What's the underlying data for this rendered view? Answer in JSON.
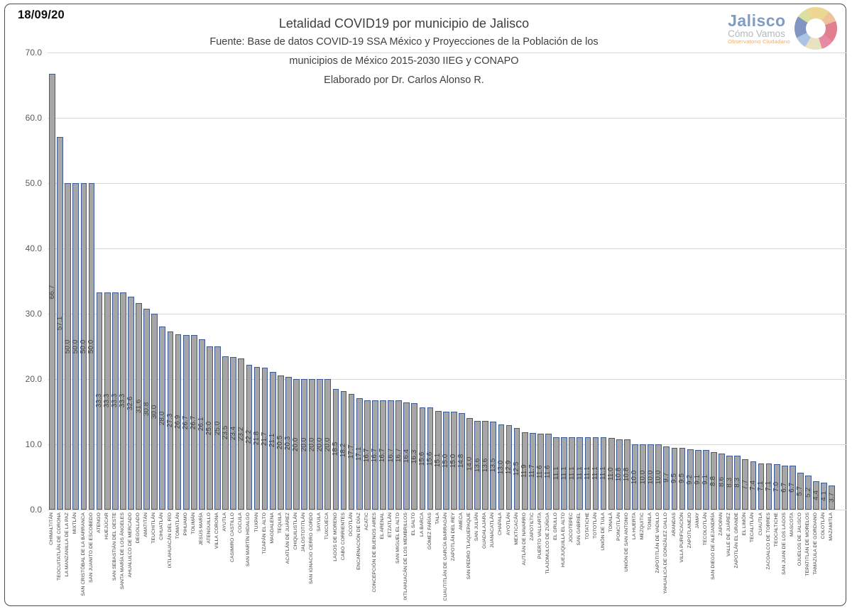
{
  "date_label": "18/09/20",
  "header": {
    "title": "Letalidad COVID19 por municipio de Jalisco",
    "subtitle1": "Fuente: Base de datos COVID-19 SSA México y Proyecciones de la Población de los",
    "subtitle2": "municipios de México 2015-2030 IIEG y CONAPO",
    "subtitle3": "Elaborado por Dr. Carlos Alonso R."
  },
  "logo": {
    "line1": "Jalisco",
    "line2": "Cómo Vamos",
    "line3": "Observatorio Ciudadano",
    "brand_blue": "#7f9dc4",
    "brand_gray": "#b3b9bf",
    "brand_orange": "#f0a868"
  },
  "chart_data": {
    "type": "bar",
    "title": "Letalidad COVID19 por municipio de Jalisco",
    "xlabel": "",
    "ylabel": "",
    "ylim": [
      0,
      70
    ],
    "yticks": [
      70,
      60,
      50,
      40,
      30,
      20,
      10,
      0
    ],
    "grid": true,
    "legend": "none",
    "bar_fill": "#a6a6a6",
    "bar_border": "#3c5a96",
    "gridline_color": "#d9d9d9",
    "label_color": "#404040",
    "categories": [
      "CHIMALTITÁN",
      "TEOCUITATLÁN DE CORONA",
      "LA MANZANILLA DE LA PAZ",
      "MIXTLÁN",
      "SAN CRISTÓBAL DE LA BARRANCA",
      "SAN JUANITO DE ESCOBEDO",
      "ATENGO",
      "HUEJÚCAR",
      "SAN SEBASTIÁN DEL OESTE",
      "SANTA MARÍA DE LOS ÁNGELES",
      "AHUALULCO DE MERCADO",
      "DEGOLLADO",
      "AMATITÁN",
      "TEUCHITLÁN",
      "CIHUATLÁN",
      "IXTLAHUACÁN DEL RÍO",
      "TOMATLÁN",
      "PIHUAMO",
      "TOLIMÁN",
      "JESÚS MARÍA",
      "ATENGUILLO",
      "VILLA CORONA",
      "AYUTLA",
      "CASIMIRO CASTILLO",
      "COCULA",
      "SAN MARTÍN HIDALGO",
      "TUXPAN",
      "TIZAPÁN EL ALTO",
      "MAGDALENA",
      "TEQUILA",
      "ACATLÁN DE JUÁREZ",
      "CHIQUILISTLÁN",
      "JALOSTOTITLÁN",
      "SAN IGNACIO CERRO GORDO",
      "SAYULA",
      "TUXCUECA",
      "LAGOS DE MORENO",
      "CABO CORRIENTES",
      "OCOTLÁN",
      "ENCARNACIÓN DE DÍAZ",
      "ACATIC",
      "CONCEPCIÓN DE BUENOS AIRES",
      "EL ARENAL",
      "ETZATLÁN",
      "SAN MIGUEL EL ALTO",
      "IXTLAHUACÁN DE LOS MEMBRILLOS",
      "EL SALTO",
      "LA BARCA",
      "GÓMEZ FARÍAS",
      "TALA",
      "CUAUTITLÁN DE GARCÍA BARRAGÁN",
      "ZAPOTLÁN DEL REY",
      "AMECA",
      "SAN PEDRO TLAQUEPAQUE",
      "SAN JULIÁN",
      "GUADALAJARA",
      "JUANACATLÁN",
      "CHAPALA",
      "AYOTLÁN",
      "MEXTICACÁN",
      "AUTLÁN DE NAVARRO",
      "ZAPOTILTIC",
      "PUERTO VALLARTA",
      "TLAJOMULCO DE ZÚÑIGA",
      "EL GRULLO",
      "HUEJUQUILLA EL ALTO",
      "JOCOTEPEC",
      "SAN GABRIEL",
      "TOTATICHE",
      "TOTOTLÁN",
      "UNIÓN DE TULA",
      "TONALÁ",
      "PONCITLÁN",
      "UNIÓN DE SAN ANTONIO",
      "LA HUERTA",
      "MEZQUITIC",
      "TONILA",
      "ZAPOTITLÁN DE VADILLO",
      "YAHUALICA DE GONZÁLEZ GALLO",
      "ARANDAS",
      "VILLA PURIFICACIÓN",
      "ZAPOTLANEJO",
      "JAMAY",
      "TECOLOTLÁN",
      "SAN DIEGO DE ALEJANDRÍA",
      "ZAPOPAN",
      "VALLE DE JUÁREZ",
      "ZAPOTLÁN EL GRANDE",
      "EL LIMÓN",
      "TECALITLÁN",
      "CUAUTLA",
      "ZACOALCO DE TORRES",
      "TEOCALTICHE",
      "SAN JUAN DE LOS LAGOS",
      "MASCOTA",
      "OJUELOS DE JALISCO",
      "TEPATITLÁN DE MORELOS",
      "TAMAZULA DE GORDIANO",
      "COLOTLÁN",
      "MAZAMITLA"
    ],
    "values": [
      66.7,
      57.1,
      50.0,
      50.0,
      50.0,
      50.0,
      33.3,
      33.3,
      33.3,
      33.3,
      32.6,
      31.6,
      30.8,
      30.0,
      28.0,
      27.3,
      26.9,
      26.7,
      26.7,
      26.1,
      25.0,
      25.0,
      23.5,
      23.4,
      23.2,
      22.2,
      21.8,
      21.7,
      21.1,
      20.5,
      20.3,
      20.0,
      20.0,
      20.0,
      20.0,
      20.0,
      18.5,
      18.2,
      17.7,
      17.1,
      16.7,
      16.7,
      16.7,
      16.7,
      16.7,
      16.4,
      16.3,
      15.6,
      15.6,
      15.1,
      15.0,
      15.0,
      14.8,
      14.0,
      13.6,
      13.6,
      13.5,
      13.0,
      12.9,
      12.5,
      11.9,
      11.7,
      11.6,
      11.6,
      11.1,
      11.1,
      11.1,
      11.1,
      11.1,
      11.1,
      11.1,
      11.0,
      10.8,
      10.8,
      10.0,
      10.0,
      10.0,
      10.0,
      9.7,
      9.5,
      9.5,
      9.2,
      9.1,
      9.1,
      8.8,
      8.6,
      8.3,
      8.3,
      7.7,
      7.4,
      7.1,
      7.1,
      7.0,
      6.7,
      6.7,
      5.7,
      5.2,
      4.4,
      4.1,
      3.7
    ]
  }
}
